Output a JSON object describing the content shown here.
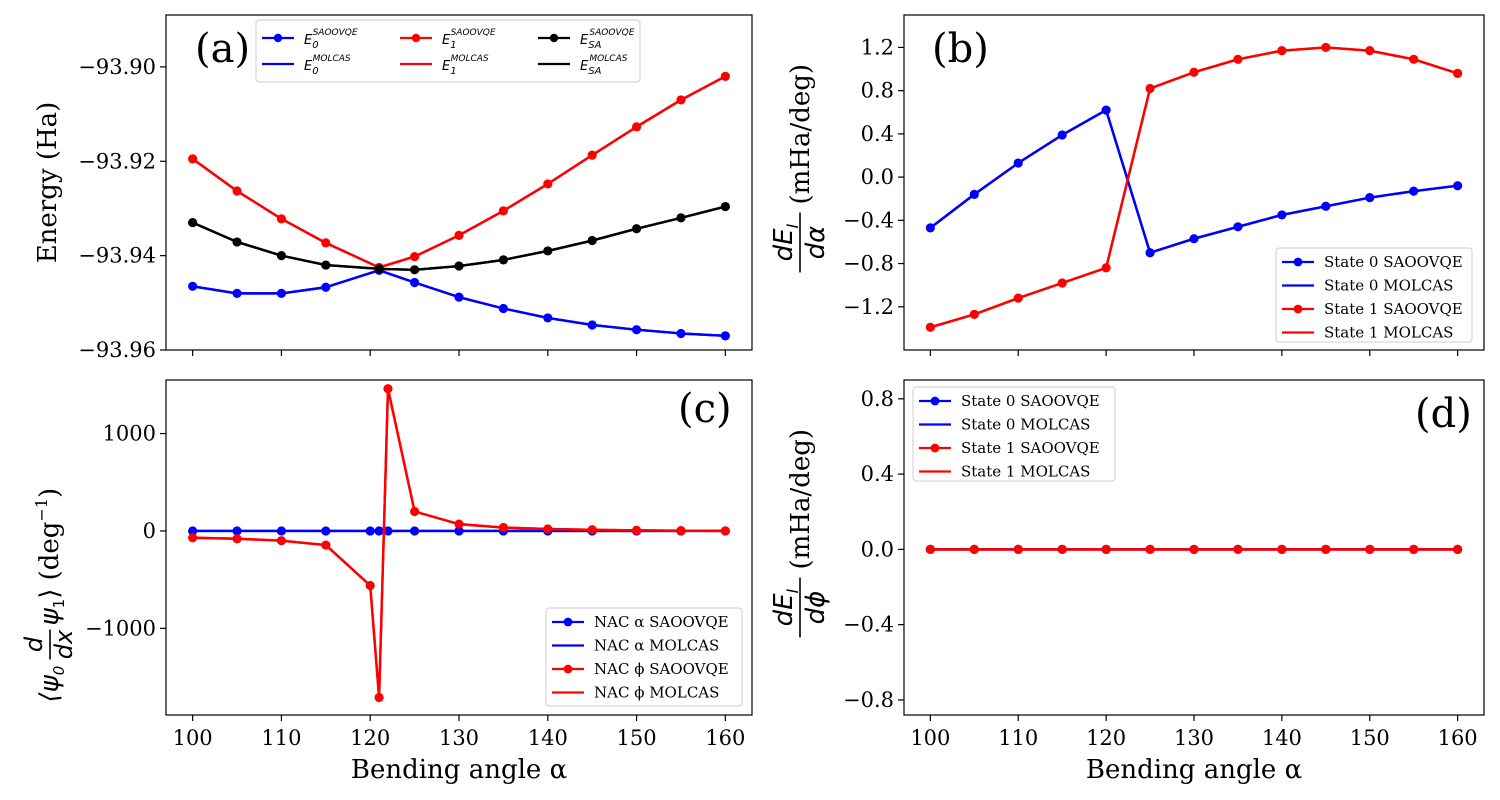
{
  "colors": {
    "state0": "#0000ff",
    "state1": "#ff0000",
    "sa": "#000000"
  },
  "chart_data": [
    {
      "panel": "a",
      "type": "line",
      "label": "(a)",
      "ylabel": "Energy (Ha)",
      "xlim": [
        97,
        163
      ],
      "ylim": [
        -93.96,
        -93.889
      ],
      "x_ticks": [
        100,
        110,
        120,
        130,
        140,
        150,
        160
      ],
      "show_x_tick_labels": false,
      "y_ticks": [
        -93.96,
        -93.94,
        -93.92,
        -93.9
      ],
      "y_tick_labels": [
        "−93.96",
        "−93.94",
        "−93.92",
        "−93.90"
      ],
      "x": [
        100,
        105,
        110,
        115,
        121,
        125,
        130,
        135,
        140,
        145,
        150,
        155,
        160
      ],
      "series": [
        {
          "name": "E0 SAOOVQE",
          "color": "state0",
          "marker": true,
          "values": [
            -93.9465,
            -93.948,
            -93.948,
            -93.9467,
            -93.9431,
            -93.9457,
            -93.9488,
            -93.9512,
            -93.9532,
            -93.9547,
            -93.9557,
            -93.9565,
            -93.957
          ]
        },
        {
          "name": "E0 MOLCAS",
          "color": "state0",
          "marker": false,
          "values": [
            -93.9465,
            -93.948,
            -93.948,
            -93.9467,
            -93.9431,
            -93.9457,
            -93.9488,
            -93.9512,
            -93.9532,
            -93.9547,
            -93.9557,
            -93.9565,
            -93.957
          ]
        },
        {
          "name": "E1 SAOOVQE",
          "color": "state1",
          "marker": true,
          "values": [
            -93.9195,
            -93.9263,
            -93.9322,
            -93.9373,
            -93.9425,
            -93.9402,
            -93.9357,
            -93.9305,
            -93.9248,
            -93.9187,
            -93.9127,
            -93.907,
            -93.902
          ]
        },
        {
          "name": "E1 MOLCAS",
          "color": "state1",
          "marker": false,
          "values": [
            -93.9195,
            -93.9263,
            -93.9322,
            -93.9373,
            -93.9425,
            -93.9402,
            -93.9357,
            -93.9305,
            -93.9248,
            -93.9187,
            -93.9127,
            -93.907,
            -93.902
          ]
        },
        {
          "name": "ESA SAOOVQE",
          "color": "sa",
          "marker": true,
          "values": [
            -93.933,
            -93.9371,
            -93.94,
            -93.942,
            -93.9428,
            -93.943,
            -93.9422,
            -93.9409,
            -93.939,
            -93.9368,
            -93.9343,
            -93.932,
            -93.9296
          ]
        },
        {
          "name": "ESA MOLCAS",
          "color": "sa",
          "marker": false,
          "values": [
            -93.933,
            -93.9371,
            -93.94,
            -93.942,
            -93.9428,
            -93.943,
            -93.9422,
            -93.9409,
            -93.939,
            -93.9368,
            -93.9343,
            -93.932,
            -93.9296
          ]
        }
      ],
      "legend": {
        "placement": "top",
        "entries": [
          {
            "sym": "E",
            "sub": "0",
            "sup": "SAOOVQE",
            "color": "state0",
            "marker": true
          },
          {
            "sym": "E",
            "sub": "1",
            "sup": "SAOOVQE",
            "color": "state1",
            "marker": true
          },
          {
            "sym": "E",
            "sub": "SA",
            "sup": "SAOOVQE",
            "color": "sa",
            "marker": true
          },
          {
            "sym": "E",
            "sub": "0",
            "sup": "MOLCAS",
            "color": "state0",
            "marker": false
          },
          {
            "sym": "E",
            "sub": "1",
            "sup": "MOLCAS",
            "color": "state1",
            "marker": false
          },
          {
            "sym": "E",
            "sub": "SA",
            "sup": "MOLCAS",
            "color": "sa",
            "marker": false
          }
        ]
      }
    },
    {
      "panel": "b",
      "type": "line",
      "label": "(b)",
      "ylabel_num": "dE",
      "ylabel_num_sub": "I",
      "ylabel_den": "dα",
      "ylabel_unit": "(mHa/deg)",
      "xlim": [
        97,
        163
      ],
      "ylim": [
        -1.6,
        1.5
      ],
      "x_ticks": [
        100,
        110,
        120,
        130,
        140,
        150,
        160
      ],
      "show_x_tick_labels": false,
      "y_ticks": [
        -1.2,
        -0.8,
        -0.4,
        0.0,
        0.4,
        0.8,
        1.2
      ],
      "y_tick_labels": [
        "−1.2",
        "−0.8",
        "−0.4",
        "0.0",
        "0.4",
        "0.8",
        "1.2"
      ],
      "x": [
        100,
        105,
        110,
        115,
        120,
        125,
        130,
        135,
        140,
        145,
        150,
        155,
        160
      ],
      "series": [
        {
          "name": "State 0 SAOOVQE",
          "color": "state0",
          "marker": true,
          "values": [
            -0.47,
            -0.16,
            0.13,
            0.39,
            0.62,
            -0.7,
            -0.57,
            -0.46,
            -0.35,
            -0.27,
            -0.19,
            -0.13,
            -0.08
          ]
        },
        {
          "name": "State 0 MOLCAS",
          "color": "state0",
          "marker": false,
          "values": [
            -0.47,
            -0.16,
            0.13,
            0.39,
            0.62,
            -0.7,
            -0.57,
            -0.46,
            -0.35,
            -0.27,
            -0.19,
            -0.13,
            -0.08
          ]
        },
        {
          "name": "State 1 SAOOVQE",
          "color": "state1",
          "marker": true,
          "values": [
            -1.39,
            -1.27,
            -1.12,
            -0.98,
            -0.84,
            0.82,
            0.97,
            1.09,
            1.17,
            1.2,
            1.17,
            1.09,
            0.96
          ]
        },
        {
          "name": "State 1 MOLCAS",
          "color": "state1",
          "marker": false,
          "values": [
            -1.39,
            -1.27,
            -1.12,
            -0.98,
            -0.84,
            0.82,
            0.97,
            1.09,
            1.17,
            1.2,
            1.17,
            1.09,
            0.96
          ]
        }
      ],
      "legend": {
        "placement": "lower-right",
        "entries": [
          {
            "text": "State 0 SAOOVQE",
            "color": "state0",
            "marker": true
          },
          {
            "text": "State 0 MOLCAS",
            "color": "state0",
            "marker": false
          },
          {
            "text": "State 1 SAOOVQE",
            "color": "state1",
            "marker": true
          },
          {
            "text": "State 1 MOLCAS",
            "color": "state1",
            "marker": false
          }
        ]
      }
    },
    {
      "panel": "c",
      "type": "line",
      "label": "(c)",
      "ylabel_pre": "⟨ψ",
      "ylabel_pre_sub": "0",
      "ylabel_num": "d",
      "ylabel_den": "dx",
      "ylabel_post": "ψ",
      "ylabel_post_sub": "1",
      "ylabel_close": "⟩ (deg",
      "ylabel_exp": "−1",
      "ylabel_end": ")",
      "xlabel": "Bending angle α",
      "xlim": [
        97,
        163
      ],
      "ylim": [
        -1890,
        1550
      ],
      "x_ticks": [
        100,
        110,
        120,
        130,
        140,
        150,
        160
      ],
      "x_tick_labels": [
        "100",
        "110",
        "120",
        "130",
        "140",
        "150",
        "160"
      ],
      "show_x_tick_labels": true,
      "y_ticks": [
        -1000,
        0,
        1000
      ],
      "y_tick_labels": [
        "−1000",
        "0",
        "1000"
      ],
      "x": [
        100,
        105,
        110,
        115,
        120,
        121,
        122,
        125,
        130,
        135,
        140,
        145,
        150,
        155,
        160
      ],
      "series": [
        {
          "name": "NAC α SAOOVQE",
          "color": "state0",
          "marker": true,
          "values": [
            0,
            0,
            0,
            0,
            0,
            0,
            0,
            0,
            0,
            0,
            0,
            0,
            0,
            0,
            0
          ]
        },
        {
          "name": "NAC α MOLCAS",
          "color": "state0",
          "marker": false,
          "values": [
            0,
            0,
            0,
            0,
            0,
            0,
            0,
            0,
            0,
            0,
            0,
            0,
            0,
            0,
            0
          ]
        },
        {
          "name": "NAC φ SAOOVQE",
          "color": "state1",
          "marker": true,
          "values": [
            -70,
            -80,
            -100,
            -145,
            -560,
            -1710,
            1460,
            200,
            70,
            35,
            20,
            12,
            6,
            3,
            0
          ]
        },
        {
          "name": "NAC φ MOLCAS",
          "color": "state1",
          "marker": false,
          "values": [
            -70,
            -80,
            -100,
            -145,
            -560,
            -1710,
            1460,
            200,
            70,
            35,
            20,
            12,
            6,
            3,
            0
          ]
        }
      ],
      "legend": {
        "placement": "lower-right",
        "entries": [
          {
            "text": "NAC α SAOOVQE",
            "color": "state0",
            "marker": true
          },
          {
            "text": "NAC α MOLCAS",
            "color": "state0",
            "marker": false
          },
          {
            "text": "NAC ϕ SAOOVQE",
            "color": "state1",
            "marker": true
          },
          {
            "text": "NAC ϕ MOLCAS",
            "color": "state1",
            "marker": false
          }
        ]
      }
    },
    {
      "panel": "d",
      "type": "line",
      "label": "(d)",
      "ylabel_num": "dE",
      "ylabel_num_sub": "I",
      "ylabel_den": "dϕ",
      "ylabel_unit": "(mHa/deg)",
      "xlabel": "Bending angle α",
      "xlim": [
        97,
        163
      ],
      "ylim": [
        -0.88,
        0.9
      ],
      "x_ticks": [
        100,
        110,
        120,
        130,
        140,
        150,
        160
      ],
      "x_tick_labels": [
        "100",
        "110",
        "120",
        "130",
        "140",
        "150",
        "160"
      ],
      "show_x_tick_labels": true,
      "y_ticks": [
        -0.8,
        -0.4,
        0.0,
        0.4,
        0.8
      ],
      "y_tick_labels": [
        "−0.8",
        "−0.4",
        "0.0",
        "0.4",
        "0.8"
      ],
      "x": [
        100,
        105,
        110,
        115,
        120,
        125,
        130,
        135,
        140,
        145,
        150,
        155,
        160
      ],
      "series": [
        {
          "name": "State 0 SAOOVQE",
          "color": "state0",
          "marker": true,
          "values": [
            0,
            0,
            0,
            0,
            0,
            0,
            0,
            0,
            0,
            0,
            0,
            0,
            0
          ]
        },
        {
          "name": "State 0 MOLCAS",
          "color": "state0",
          "marker": false,
          "values": [
            0,
            0,
            0,
            0,
            0,
            0,
            0,
            0,
            0,
            0,
            0,
            0,
            0
          ]
        },
        {
          "name": "State 1 SAOOVQE",
          "color": "state1",
          "marker": true,
          "values": [
            0,
            0,
            0,
            0,
            0,
            0,
            0,
            0,
            0,
            0,
            0,
            0,
            0
          ]
        },
        {
          "name": "State 1 MOLCAS",
          "color": "state1",
          "marker": false,
          "values": [
            0,
            0,
            0,
            0,
            0,
            0,
            0,
            0,
            0,
            0,
            0,
            0,
            0
          ]
        }
      ],
      "legend": {
        "placement": "upper-left",
        "entries": [
          {
            "text": "State 0 SAOOVQE",
            "color": "state0",
            "marker": true
          },
          {
            "text": "State 0 MOLCAS",
            "color": "state0",
            "marker": false
          },
          {
            "text": "State 1 SAOOVQE",
            "color": "state1",
            "marker": true
          },
          {
            "text": "State 1 MOLCAS",
            "color": "state1",
            "marker": false
          }
        ]
      }
    }
  ]
}
